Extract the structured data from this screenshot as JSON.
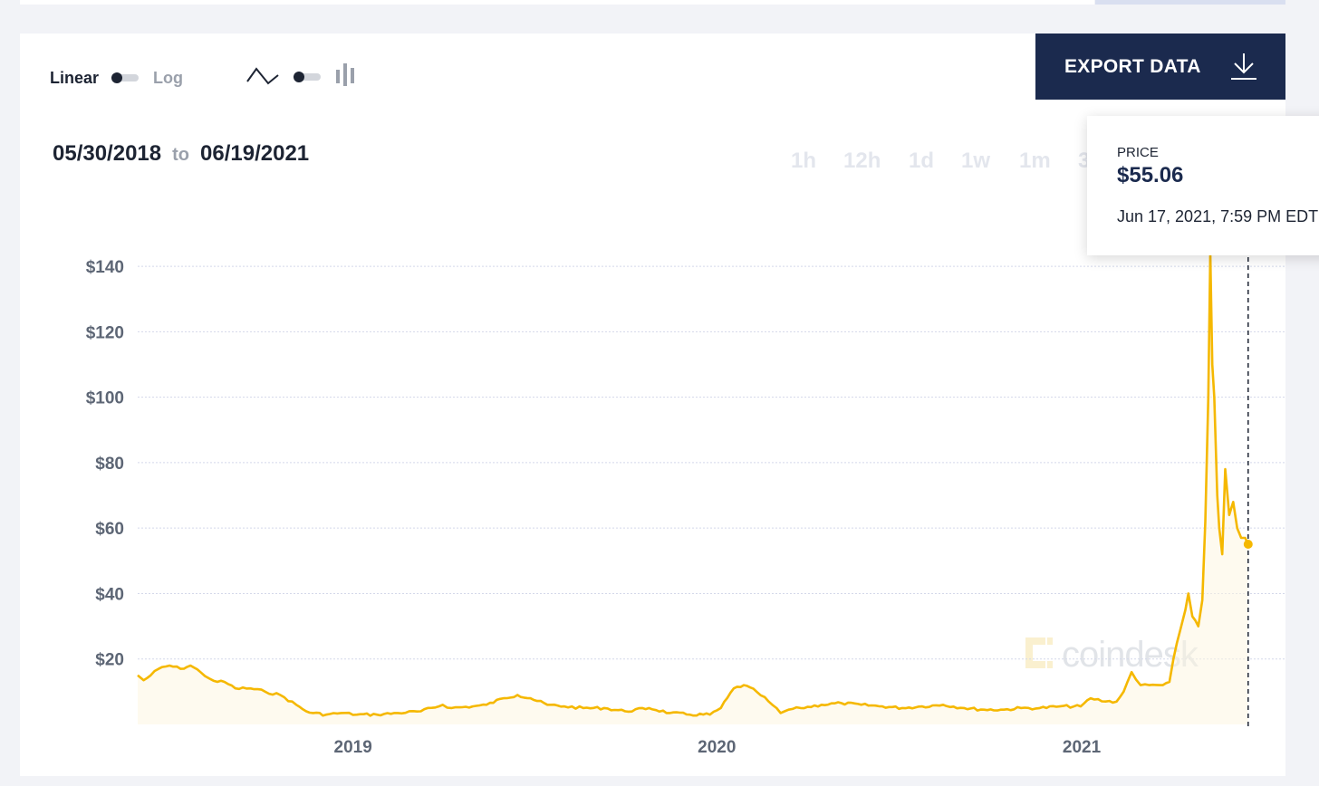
{
  "controls": {
    "scale_linear_label": "Linear",
    "scale_log_label": "Log",
    "scale_active": "Linear",
    "chart_type_active": "line",
    "line-chart-icon": "line-chart-icon",
    "bar-chart-icon": "bar-chart-icon"
  },
  "export": {
    "label": "EXPORT DATA",
    "icon": "download-icon"
  },
  "date_range": {
    "from": "05/30/2018",
    "to_word": "to",
    "to": "06/19/2021"
  },
  "range_buttons": [
    "1h",
    "12h",
    "1d",
    "1w",
    "1m",
    "3"
  ],
  "tooltip": {
    "label": "PRICE",
    "price": "$55.06",
    "date": "Jun 17, 2021, 7:59 PM EDT"
  },
  "watermark": {
    "text": "coindesk"
  },
  "colors": {
    "line": "#f5b800",
    "grid": "#d4d8ea",
    "button_bg": "#1b2a4e"
  },
  "chart_data": {
    "type": "line",
    "title": "",
    "xlabel": "",
    "ylabel": "",
    "ylim": [
      0,
      145
    ],
    "yticks": [
      20,
      40,
      60,
      80,
      100,
      120,
      140
    ],
    "ytick_labels": [
      "$20",
      "$40",
      "$60",
      "$80",
      "$100",
      "$120",
      "$140"
    ],
    "xticks": [
      "2019",
      "2020",
      "2021"
    ],
    "xlim": [
      "2018-05-30",
      "2021-06-19"
    ],
    "grid": "horizontal dotted",
    "scale": "linear",
    "series": [
      {
        "x": [
          "2018-05-30",
          "2018-06-05",
          "2018-06-12",
          "2018-06-20",
          "2018-07-01",
          "2018-07-12",
          "2018-07-22",
          "2018-08-01",
          "2018-08-10",
          "2018-08-18",
          "2018-08-25",
          "2018-09-05",
          "2018-09-20",
          "2018-10-05",
          "2018-10-20",
          "2018-11-05",
          "2018-11-15",
          "2018-11-22",
          "2018-12-05",
          "2018-12-20",
          "2019-01-05",
          "2019-01-25",
          "2019-02-15",
          "2019-03-10",
          "2019-04-01",
          "2019-04-10",
          "2019-05-01",
          "2019-05-15",
          "2019-06-01",
          "2019-06-15",
          "2019-06-28",
          "2019-07-15",
          "2019-08-01",
          "2019-08-20",
          "2019-09-10",
          "2019-10-01",
          "2019-10-25",
          "2019-11-15",
          "2019-12-05",
          "2019-12-25",
          "2020-01-05",
          "2020-01-18",
          "2020-01-28",
          "2020-02-10",
          "2020-02-22",
          "2020-03-05",
          "2020-03-13",
          "2020-03-25",
          "2020-04-15",
          "2020-05-05",
          "2020-05-25",
          "2020-06-15",
          "2020-07-05",
          "2020-07-25",
          "2020-08-15",
          "2020-09-05",
          "2020-09-25",
          "2020-10-15",
          "2020-11-01",
          "2020-11-20",
          "2020-12-10",
          "2020-12-31",
          "2021-01-10",
          "2021-01-25",
          "2021-02-05",
          "2021-02-12",
          "2021-02-20",
          "2021-03-01",
          "2021-03-10",
          "2021-03-20",
          "2021-03-30",
          "2021-04-03",
          "2021-04-10",
          "2021-04-15",
          "2021-04-18",
          "2021-04-22",
          "2021-04-28",
          "2021-05-02",
          "2021-05-05",
          "2021-05-08",
          "2021-05-10",
          "2021-05-12",
          "2021-05-14",
          "2021-05-17",
          "2021-05-19",
          "2021-05-22",
          "2021-05-25",
          "2021-05-29",
          "2021-06-02",
          "2021-06-06",
          "2021-06-10",
          "2021-06-14",
          "2021-06-17"
        ],
        "values": [
          15,
          13.5,
          15,
          17,
          18,
          17,
          18,
          16,
          14,
          13,
          13,
          11,
          11,
          10,
          9,
          6,
          4,
          3.5,
          3,
          3.5,
          3,
          3,
          3.5,
          4,
          6,
          5,
          5.5,
          6,
          8,
          9,
          8,
          6,
          5.5,
          5,
          5,
          4,
          5,
          3.5,
          3,
          3,
          5,
          11,
          12,
          10,
          7,
          3.5,
          4.5,
          5,
          6,
          6.5,
          6,
          5.5,
          5,
          5.5,
          6,
          5,
          4.5,
          4.5,
          5,
          5,
          5.5,
          5.5,
          8,
          7,
          7,
          10,
          16,
          12,
          12,
          12,
          13,
          20,
          29,
          35,
          40,
          33,
          30,
          38,
          62,
          100,
          144,
          110,
          100,
          70,
          60,
          52,
          78,
          64,
          68,
          60,
          57,
          57,
          55.06
        ]
      }
    ]
  }
}
